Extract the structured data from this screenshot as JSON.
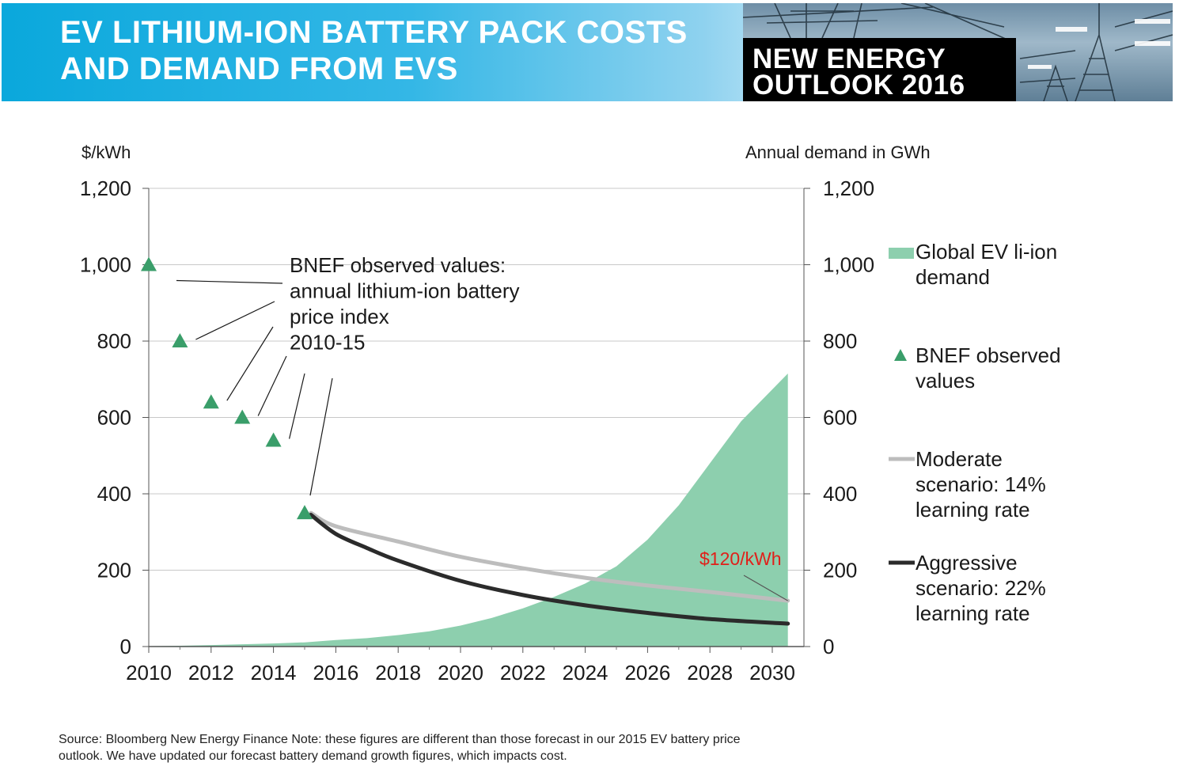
{
  "header": {
    "title_line1": "EV LITHIUM-ION BATTERY PACK COSTS",
    "title_line2": "AND DEMAND FROM EVS",
    "badge_line1": "NEW ENERGY",
    "badge_line2": "OUTLOOK 2016"
  },
  "chart_data": {
    "type": "area",
    "left_axis": {
      "label": "$/kWh",
      "ylim": [
        0,
        1200
      ],
      "ticks": [
        "0",
        "200",
        "400",
        "600",
        "800",
        "1,000",
        "1,200"
      ],
      "tick_values": [
        0,
        200,
        400,
        600,
        800,
        1000,
        1200
      ]
    },
    "right_axis": {
      "label": "Annual demand in GWh",
      "ylim": [
        0,
        1200
      ],
      "ticks": [
        "0",
        "200",
        "400",
        "600",
        "800",
        "1,000",
        "1,200"
      ],
      "tick_values": [
        0,
        200,
        400,
        600,
        800,
        1000,
        1200
      ]
    },
    "x_axis": {
      "xlim": [
        2010,
        2030.5
      ],
      "ticks": [
        "2010",
        "2012",
        "2014",
        "2016",
        "2018",
        "2020",
        "2022",
        "2024",
        "2026",
        "2028",
        "2030"
      ],
      "tick_values": [
        2010,
        2012,
        2014,
        2016,
        2018,
        2020,
        2022,
        2024,
        2026,
        2028,
        2030
      ]
    },
    "grid": "horizontal",
    "legend_placement": "right",
    "series": [
      {
        "name": "Global EV li-ion demand",
        "kind": "area",
        "axis": "right",
        "color": "#8dcfae",
        "x": [
          2010,
          2011,
          2012,
          2013,
          2014,
          2015,
          2016,
          2017,
          2018,
          2019,
          2020,
          2021,
          2022,
          2023,
          2024,
          2025,
          2026,
          2027,
          2028,
          2029,
          2030.5
        ],
        "values": [
          1,
          2,
          4,
          6,
          8,
          11,
          17,
          22,
          30,
          40,
          55,
          75,
          100,
          130,
          165,
          210,
          280,
          370,
          480,
          590,
          715
        ]
      },
      {
        "name": "BNEF observed values",
        "kind": "scatter",
        "axis": "left",
        "color": "#3a9e6a",
        "x": [
          2010,
          2011,
          2012,
          2013,
          2014,
          2015
        ],
        "values": [
          1000,
          800,
          640,
          600,
          540,
          350
        ]
      },
      {
        "name": "Moderate scenario: 14% learning rate",
        "kind": "line",
        "axis": "left",
        "color": "#bdbdbd",
        "x": [
          2015.2,
          2016,
          2018,
          2020,
          2022,
          2024,
          2026,
          2028,
          2030.5
        ],
        "values": [
          350,
          315,
          275,
          235,
          205,
          180,
          160,
          143,
          120
        ]
      },
      {
        "name": "Aggressive scenario: 22% learning rate",
        "kind": "line",
        "axis": "left",
        "color": "#2b2b2b",
        "x": [
          2015.2,
          2016,
          2017,
          2018,
          2020,
          2022,
          2024,
          2026,
          2028,
          2030.5
        ],
        "values": [
          345,
          295,
          258,
          225,
          172,
          135,
          108,
          88,
          72,
          60
        ]
      }
    ],
    "annotations": {
      "observed_callout": [
        "BNEF observed values:",
        "annual lithium-ion battery",
        "price index",
        "2010-15"
      ],
      "target_label": "$120/kWh"
    },
    "legend": [
      {
        "swatch": "area",
        "color": "#8dcfae",
        "lines": [
          "Global EV li-ion",
          "demand"
        ]
      },
      {
        "swatch": "triangle",
        "color": "#3a9e6a",
        "lines": [
          "BNEF observed",
          "values"
        ]
      },
      {
        "swatch": "line",
        "color": "#bdbdbd",
        "lines": [
          "Moderate",
          "scenario: 14%",
          "learning rate"
        ]
      },
      {
        "swatch": "line",
        "color": "#2b2b2b",
        "lines": [
          "Aggressive",
          "scenario: 22%",
          "learning rate"
        ]
      }
    ]
  },
  "footer": {
    "source_line1": "Source: Bloomberg New Energy Finance Note: these figures are different than those forecast in our 2015 EV battery price",
    "source_line2": "outlook. We have updated our forecast battery demand growth figures, which impacts cost."
  }
}
